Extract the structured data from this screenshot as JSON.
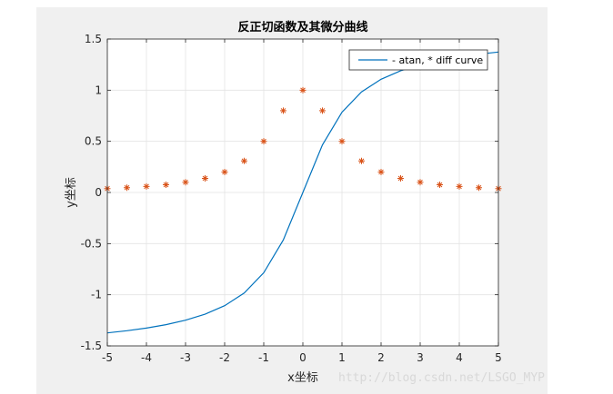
{
  "chart_data": {
    "type": "line",
    "title": "反正切函数及其微分曲线",
    "xlabel": "x坐标",
    "ylabel": "y坐标",
    "xlim": [
      -5,
      5
    ],
    "ylim": [
      -1.5,
      1.5
    ],
    "xticks": [
      -5,
      -4,
      -3,
      -2,
      -1,
      0,
      1,
      2,
      3,
      4,
      5
    ],
    "xtick_labels": [
      "-5",
      "-4",
      "-3",
      "-2",
      "-1",
      "0",
      "1",
      "2",
      "3",
      "4",
      "5"
    ],
    "yticks": [
      1.5,
      1,
      0.5,
      0,
      -0.5,
      -1,
      -1.5
    ],
    "ytick_labels": [
      "1.5",
      "1",
      "0.5",
      "0",
      "-0.5",
      "-1",
      "-1.5"
    ],
    "grid": true,
    "legend": {
      "placement": "top-right",
      "text": "- atan, * diff curve"
    },
    "series": [
      {
        "marker": "line",
        "color": "#0072bd",
        "x": [
          -5,
          -4.5,
          -4,
          -3.5,
          -3,
          -2.5,
          -2,
          -1.5,
          -1,
          -0.5,
          0,
          0.5,
          1,
          1.5,
          2,
          2.5,
          3,
          3.5,
          4,
          4.5,
          5
        ],
        "y": [
          -1.373,
          -1.352,
          -1.326,
          -1.292,
          -1.249,
          -1.19,
          -1.107,
          -0.983,
          -0.785,
          -0.464,
          0,
          0.464,
          0.785,
          0.983,
          1.107,
          1.19,
          1.249,
          1.292,
          1.326,
          1.352,
          1.373
        ]
      },
      {
        "marker": "asterisk",
        "color": "#d95319",
        "x": [
          -5,
          -4.5,
          -4,
          -3.5,
          -3,
          -2.5,
          -2,
          -1.5,
          -1,
          -0.5,
          0,
          0.5,
          1,
          1.5,
          2,
          2.5,
          3,
          3.5,
          4,
          4.5,
          5
        ],
        "y": [
          0.038,
          0.047,
          0.059,
          0.075,
          0.1,
          0.138,
          0.2,
          0.308,
          0.5,
          0.8,
          1,
          0.8,
          0.5,
          0.308,
          0.2,
          0.138,
          0.1,
          0.075,
          0.059,
          0.047,
          0.038
        ]
      }
    ]
  },
  "watermark": "http://blog.csdn.net/LSGO_MYP"
}
